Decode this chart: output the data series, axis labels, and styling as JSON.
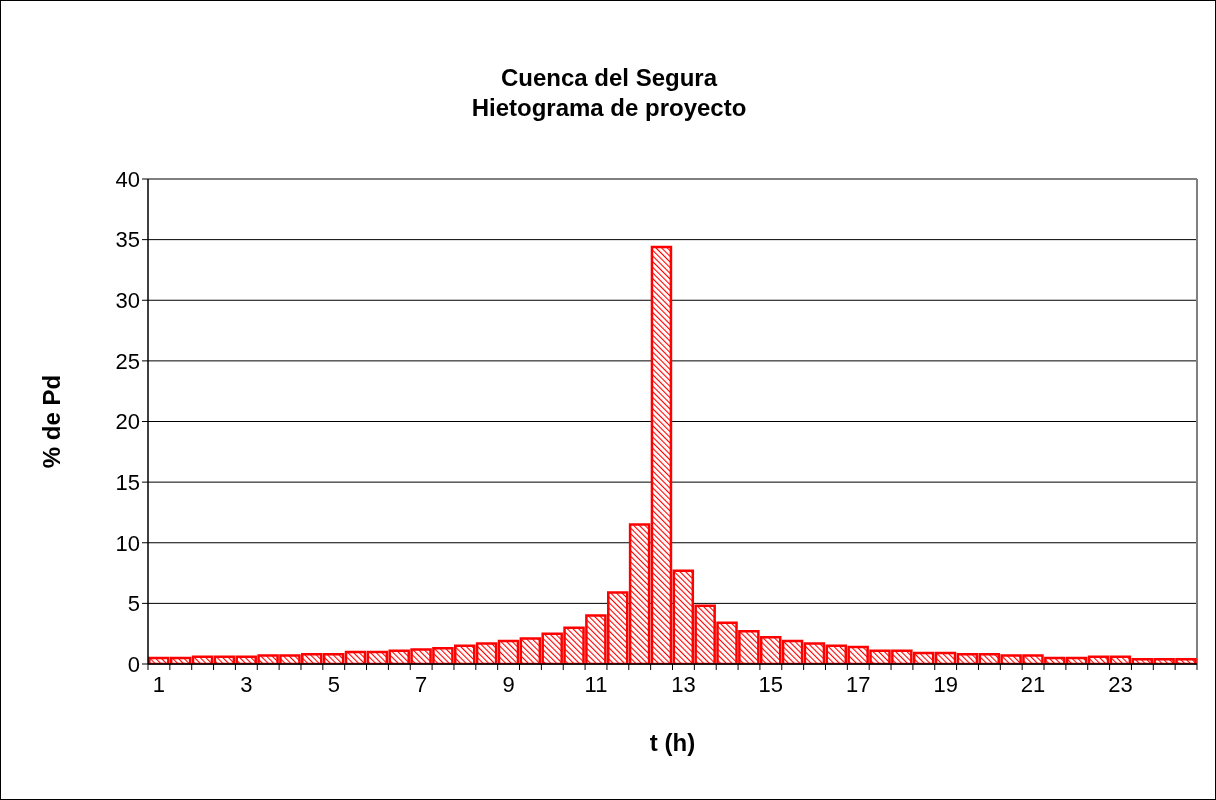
{
  "chart_data": {
    "type": "bar",
    "title": "Cuenca del Segura",
    "subtitle": "Hietograma de proyecto",
    "xlabel": "t (h)",
    "ylabel": "% de Pd",
    "x": [
      1,
      1.5,
      2,
      2.5,
      3,
      3.5,
      4,
      4.5,
      5,
      5.5,
      6,
      6.5,
      7,
      7.5,
      8,
      8.5,
      9,
      9.5,
      10,
      10.5,
      11,
      11.5,
      12,
      12.5,
      13,
      13.5,
      14,
      14.5,
      15,
      15.5,
      16,
      16.5,
      17,
      17.5,
      18,
      18.5,
      19,
      19.5,
      20,
      20.5,
      21,
      21.5,
      22,
      22.5,
      23,
      23.5,
      24,
      24.5
    ],
    "values": [
      0.5,
      0.5,
      0.6,
      0.6,
      0.6,
      0.7,
      0.7,
      0.8,
      0.8,
      1.0,
      1.0,
      1.1,
      1.2,
      1.3,
      1.5,
      1.7,
      1.9,
      2.1,
      2.5,
      3.0,
      4.0,
      5.9,
      11.5,
      34.4,
      7.7,
      4.8,
      3.4,
      2.7,
      2.2,
      1.9,
      1.7,
      1.5,
      1.4,
      1.1,
      1.1,
      0.9,
      0.9,
      0.8,
      0.8,
      0.7,
      0.7,
      0.5,
      0.5,
      0.6,
      0.6,
      0.4,
      0.4,
      0.4
    ],
    "color": "#ff0000",
    "xlim": [
      0.75,
      24.75
    ],
    "xticks": [
      {
        "value": 0.75,
        "label": null
      },
      1,
      {
        "value": 1.25,
        "label": null
      },
      {
        "value": 1.75,
        "label": null
      },
      {
        "value": 2.25,
        "label": null
      },
      {
        "value": 2.75,
        "label": null
      },
      3,
      {
        "value": 3.25,
        "label": null
      },
      {
        "value": 3.75,
        "label": null
      },
      {
        "value": 4.25,
        "label": null
      },
      {
        "value": 4.75,
        "label": null
      },
      5,
      {
        "value": 5.25,
        "label": null
      },
      {
        "value": 5.75,
        "label": null
      },
      {
        "value": 6.25,
        "label": null
      },
      {
        "value": 6.75,
        "label": null
      },
      7,
      {
        "value": 7.25,
        "label": null
      },
      {
        "value": 7.75,
        "label": null
      },
      {
        "value": 8.25,
        "label": null
      },
      {
        "value": 8.75,
        "label": null
      },
      9,
      {
        "value": 9.25,
        "label": null
      },
      {
        "value": 9.75,
        "label": null
      },
      {
        "value": 10.25,
        "label": null
      },
      {
        "value": 10.75,
        "label": null
      },
      11,
      {
        "value": 11.25,
        "label": null
      },
      {
        "value": 11.75,
        "label": null
      },
      {
        "value": 12.25,
        "label": null
      },
      {
        "value": 12.75,
        "label": null
      },
      13,
      {
        "value": 13.25,
        "label": null
      },
      {
        "value": 13.75,
        "label": null
      },
      {
        "value": 14.25,
        "label": null
      },
      {
        "value": 14.75,
        "label": null
      },
      15,
      {
        "value": 15.25,
        "label": null
      },
      {
        "value": 15.75,
        "label": null
      },
      {
        "value": 16.25,
        "label": null
      },
      {
        "value": 16.75,
        "label": null
      },
      17,
      {
        "value": 17.25,
        "label": null
      },
      {
        "value": 17.75,
        "label": null
      },
      {
        "value": 18.25,
        "label": null
      },
      {
        "value": 18.75,
        "label": null
      },
      19,
      {
        "value": 19.25,
        "label": null
      },
      {
        "value": 19.75,
        "label": null
      },
      {
        "value": 20.25,
        "label": null
      },
      {
        "value": 20.75,
        "label": null
      },
      21,
      {
        "value": 21.25,
        "label": null
      },
      {
        "value": 21.75,
        "label": null
      },
      {
        "value": 22.25,
        "label": null
      },
      {
        "value": 22.75,
        "label": null
      },
      23,
      {
        "value": 23.25,
        "label": null
      },
      {
        "value": 23.75,
        "label": null
      },
      {
        "value": 24.25,
        "label": null
      },
      {
        "value": 24.75,
        "label": null
      }
    ],
    "ylim": [
      0,
      40
    ],
    "yticks": [
      0,
      5,
      10,
      15,
      20,
      25,
      30,
      35,
      40
    ],
    "grid": "y"
  }
}
